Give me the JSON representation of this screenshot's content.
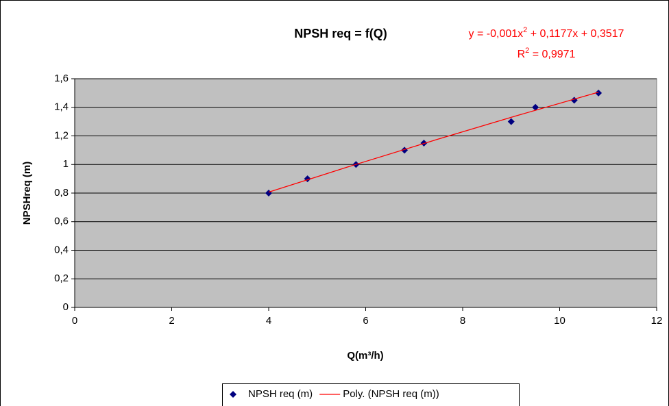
{
  "chart_data": {
    "type": "scatter",
    "title": "NPSH req = f(Q)",
    "equation": [
      "y = -0,001x",
      "2",
      " + 0,1177x + 0,3517"
    ],
    "r_squared": [
      "R",
      "2",
      " = 0,9971"
    ],
    "x_label": "Q(m³/h)",
    "y_label": "NPSHreq (m)",
    "xlim": [
      0,
      12
    ],
    "xticks": [
      0,
      2,
      4,
      6,
      8,
      10,
      12
    ],
    "ylim": [
      0,
      1.6
    ],
    "yticks": [
      0,
      {
        "value": 0.2,
        "label": "0,2"
      },
      {
        "value": 0.4,
        "label": "0,4"
      },
      {
        "value": 0.6,
        "label": "0,6"
      },
      {
        "value": 0.8,
        "label": "0,8"
      },
      1,
      {
        "value": 1.2,
        "label": "1,2"
      },
      {
        "value": 1.4,
        "label": "1,4"
      },
      {
        "value": 1.6,
        "label": "1,6"
      }
    ],
    "grid": true,
    "legend": "bottom",
    "plot_background": "#c0c0c0",
    "series": [
      {
        "name": "NPSH req (m)",
        "color": "#000080",
        "kind": "markers",
        "x": [
          4,
          4.8,
          5.8,
          6.8,
          7.2,
          9,
          9.5,
          10.3,
          10.8
        ],
        "values": [
          0.8,
          0.9,
          1.0,
          1.1,
          1.15,
          1.3,
          1.4,
          1.45,
          1.5
        ]
      },
      {
        "name": "Poly. (NPSH req (m))",
        "color": "#ff0000",
        "kind": "line",
        "x": [
          4,
          5.7,
          7.4,
          9.1,
          10.8
        ],
        "values": [
          0.8065,
          0.9901,
          1.1679,
          1.34,
          1.5062
        ]
      }
    ]
  }
}
